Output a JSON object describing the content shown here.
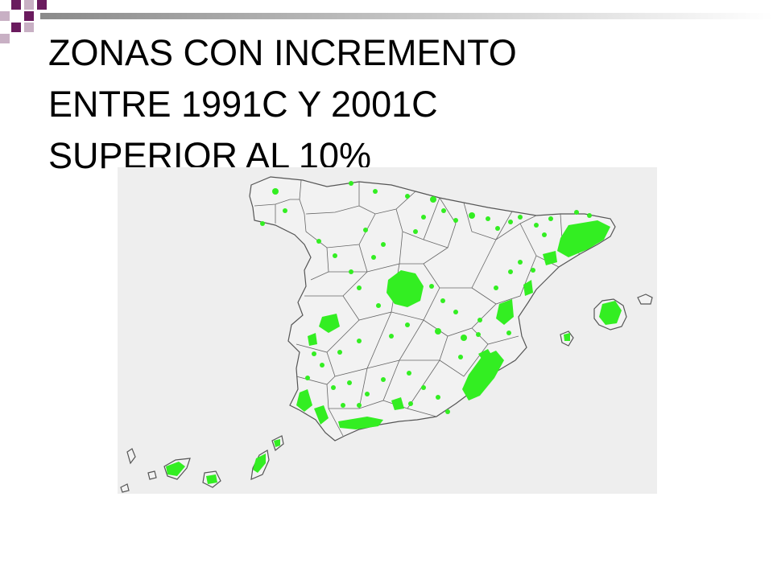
{
  "title": {
    "lines": [
      "ZONAS CON INCREMENTO",
      "ENTRE 1991C Y 2001C",
      "SUPERIOR AL 10%"
    ]
  },
  "map": {
    "region": "Spain",
    "colors": {
      "background": "#eeeeee",
      "land": "#f2f2f2",
      "border": "#555555",
      "highlight": "#33ee22",
      "accent_purple": "#6a1b5e"
    }
  }
}
